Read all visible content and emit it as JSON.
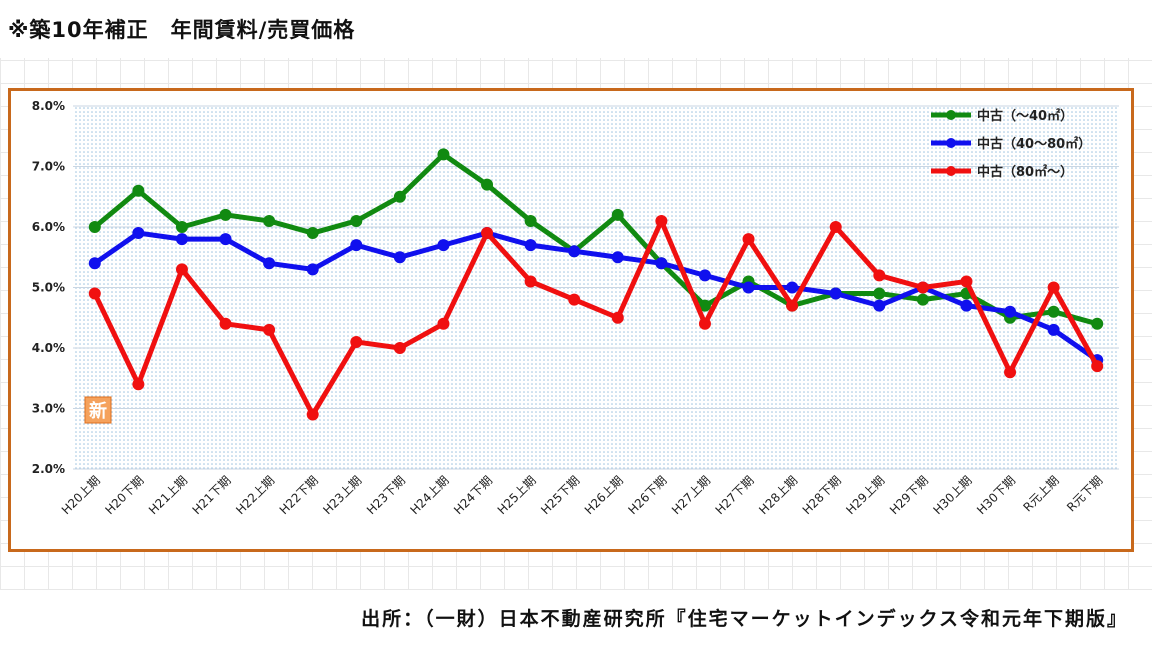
{
  "header": {
    "title": "※築10年補正　年間賃料/売買価格"
  },
  "footer": {
    "source": "出所：（一財）日本不動産研究所『住宅マーケットインデックス令和元年下期版』"
  },
  "chart_data": {
    "type": "line",
    "title": "",
    "xlabel": "",
    "ylabel": "",
    "ylim": [
      0.02,
      0.08
    ],
    "y_ticks": [
      "8.0%",
      "7.0%",
      "6.0%",
      "5.0%",
      "4.0%",
      "3.0%",
      "2.0%"
    ],
    "grid": "dotted-background",
    "legend_position": "top-right",
    "annotation": "新",
    "categories": [
      "H20上期",
      "H20下期",
      "H21上期",
      "H21下期",
      "H22上期",
      "H22下期",
      "H23上期",
      "H23下期",
      "H24上期",
      "H24下期",
      "H25上期",
      "H25下期",
      "H26上期",
      "H26下期",
      "H27上期",
      "H27下期",
      "H28上期",
      "H28下期",
      "H29上期",
      "H29下期",
      "H30上期",
      "H30下期",
      "R元上期",
      "R元下期"
    ],
    "series": [
      {
        "name": "中古（～40㎡）",
        "color": "#118a11",
        "values": [
          0.06,
          0.066,
          0.06,
          0.062,
          0.061,
          0.059,
          0.061,
          0.065,
          0.072,
          0.067,
          0.061,
          0.056,
          0.062,
          0.054,
          0.047,
          0.051,
          0.047,
          0.049,
          0.049,
          0.048,
          0.049,
          0.045,
          0.046,
          0.044
        ]
      },
      {
        "name": "中古（40～80㎡）",
        "color": "#1010ee",
        "values": [
          0.054,
          0.059,
          0.058,
          0.058,
          0.054,
          0.053,
          0.057,
          0.055,
          0.057,
          0.059,
          0.057,
          0.056,
          0.055,
          0.054,
          0.052,
          0.05,
          0.05,
          0.049,
          0.047,
          0.05,
          0.047,
          0.046,
          0.043,
          0.038
        ]
      },
      {
        "name": "中古（80㎡～）",
        "color": "#f01010",
        "values": [
          0.049,
          0.034,
          0.053,
          0.044,
          0.043,
          0.029,
          0.041,
          0.04,
          0.044,
          0.059,
          0.051,
          0.048,
          0.045,
          0.061,
          0.044,
          0.058,
          0.047,
          0.06,
          0.052,
          0.05,
          0.051,
          0.036,
          0.05,
          0.037
        ]
      }
    ]
  }
}
